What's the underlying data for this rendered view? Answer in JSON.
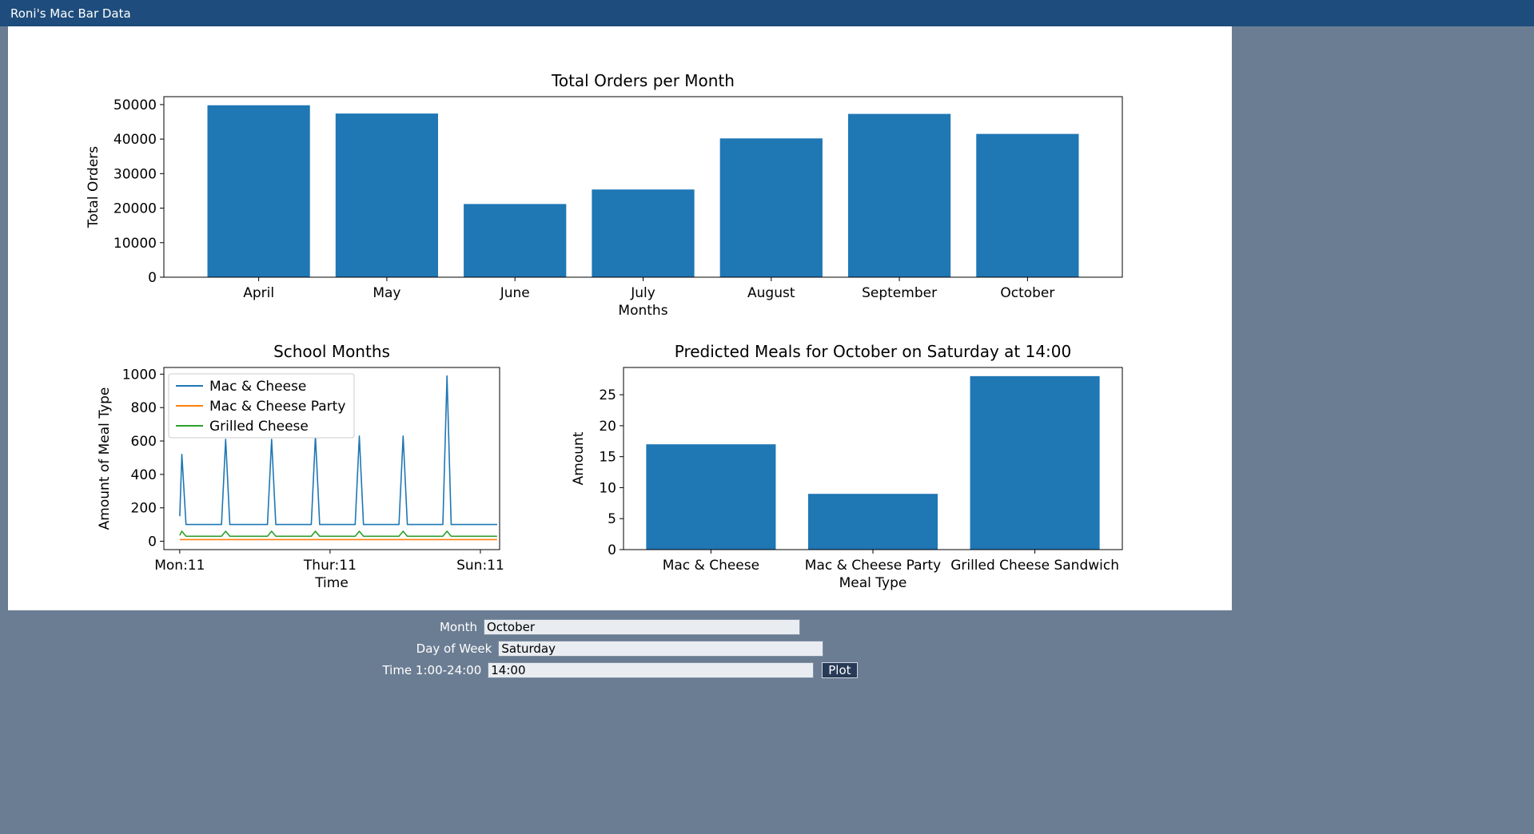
{
  "window": {
    "title": "Roni's Mac Bar Data"
  },
  "colors": {
    "titlebar": "#1e4c7c",
    "background": "#6b7d93",
    "panel": "#ffffff",
    "bar_blue": "#1f77b4",
    "line_orange": "#ff7f0e",
    "line_green": "#2ca02c"
  },
  "chart_data": [
    {
      "id": "orders",
      "type": "bar",
      "title": "Total Orders per Month",
      "xlabel": "Months",
      "ylabel": "Total Orders",
      "categories": [
        "April",
        "May",
        "June",
        "July",
        "August",
        "September",
        "October"
      ],
      "values": [
        49800,
        47400,
        21200,
        25400,
        40200,
        47300,
        41500
      ],
      "ylim": [
        0,
        52290
      ],
      "yticks": [
        0,
        10000,
        20000,
        30000,
        40000,
        50000
      ],
      "bar_color": "#1f77b4",
      "grid": false,
      "legend": "none"
    },
    {
      "id": "school",
      "type": "line",
      "title": "School Months",
      "xlabel": "Time",
      "ylabel": "Amount of Meal Type",
      "xlim": [
        -7.6,
        153.2
      ],
      "ylim": [
        -50,
        1040
      ],
      "yticks": [
        0,
        200,
        400,
        600,
        800,
        1000
      ],
      "xticks": [
        {
          "x": 0,
          "label": "Mon:11"
        },
        {
          "x": 72,
          "label": "Thur:11"
        },
        {
          "x": 144,
          "label": "Sun:11"
        }
      ],
      "grid": false,
      "legend_position": "upper-left",
      "series": [
        {
          "name": "Mac & Cheese",
          "color": "#1f77b4",
          "points": [
            [
              0,
              150
            ],
            [
              1,
              520
            ],
            [
              3,
              100
            ],
            [
              20,
              100
            ],
            [
              22,
              610
            ],
            [
              24,
              100
            ],
            [
              42,
              100
            ],
            [
              44,
              610
            ],
            [
              46,
              100
            ],
            [
              63,
              100
            ],
            [
              65,
              630
            ],
            [
              67,
              100
            ],
            [
              84,
              100
            ],
            [
              86,
              630
            ],
            [
              88,
              100
            ],
            [
              105,
              100
            ],
            [
              107,
              630
            ],
            [
              109,
              100
            ],
            [
              126,
              100
            ],
            [
              128,
              990
            ],
            [
              130,
              100
            ],
            [
              152,
              100
            ]
          ]
        },
        {
          "name": "Mac & Cheese Party",
          "color": "#ff7f0e",
          "points": [
            [
              0,
              10
            ],
            [
              152,
              10
            ]
          ]
        },
        {
          "name": "Grilled Cheese",
          "color": "#2ca02c",
          "points": [
            [
              0,
              35
            ],
            [
              1,
              60
            ],
            [
              3,
              30
            ],
            [
              20,
              30
            ],
            [
              22,
              60
            ],
            [
              24,
              30
            ],
            [
              42,
              30
            ],
            [
              44,
              60
            ],
            [
              46,
              30
            ],
            [
              63,
              30
            ],
            [
              65,
              60
            ],
            [
              67,
              30
            ],
            [
              84,
              30
            ],
            [
              86,
              60
            ],
            [
              88,
              30
            ],
            [
              105,
              30
            ],
            [
              107,
              60
            ],
            [
              109,
              30
            ],
            [
              126,
              30
            ],
            [
              128,
              60
            ],
            [
              130,
              30
            ],
            [
              152,
              30
            ]
          ]
        }
      ]
    },
    {
      "id": "predicted",
      "type": "bar",
      "title": "Predicted Meals for October on Saturday at 14:00",
      "xlabel": "Meal Type",
      "ylabel": "Amount",
      "categories": [
        "Mac & Cheese",
        "Mac & Cheese Party",
        "Grilled Cheese Sandwich"
      ],
      "values": [
        17,
        9,
        28
      ],
      "ylim": [
        0,
        29.4
      ],
      "yticks": [
        0,
        5,
        10,
        15,
        20,
        25
      ],
      "bar_color": "#1f77b4",
      "grid": false,
      "legend": "none"
    }
  ],
  "form": {
    "rows": [
      {
        "label": "Month",
        "value": "October"
      },
      {
        "label": "Day of Week",
        "value": "Saturday"
      },
      {
        "label": "Time 1:00-24:00",
        "value": "14:00"
      }
    ],
    "plot_button": "Plot"
  }
}
